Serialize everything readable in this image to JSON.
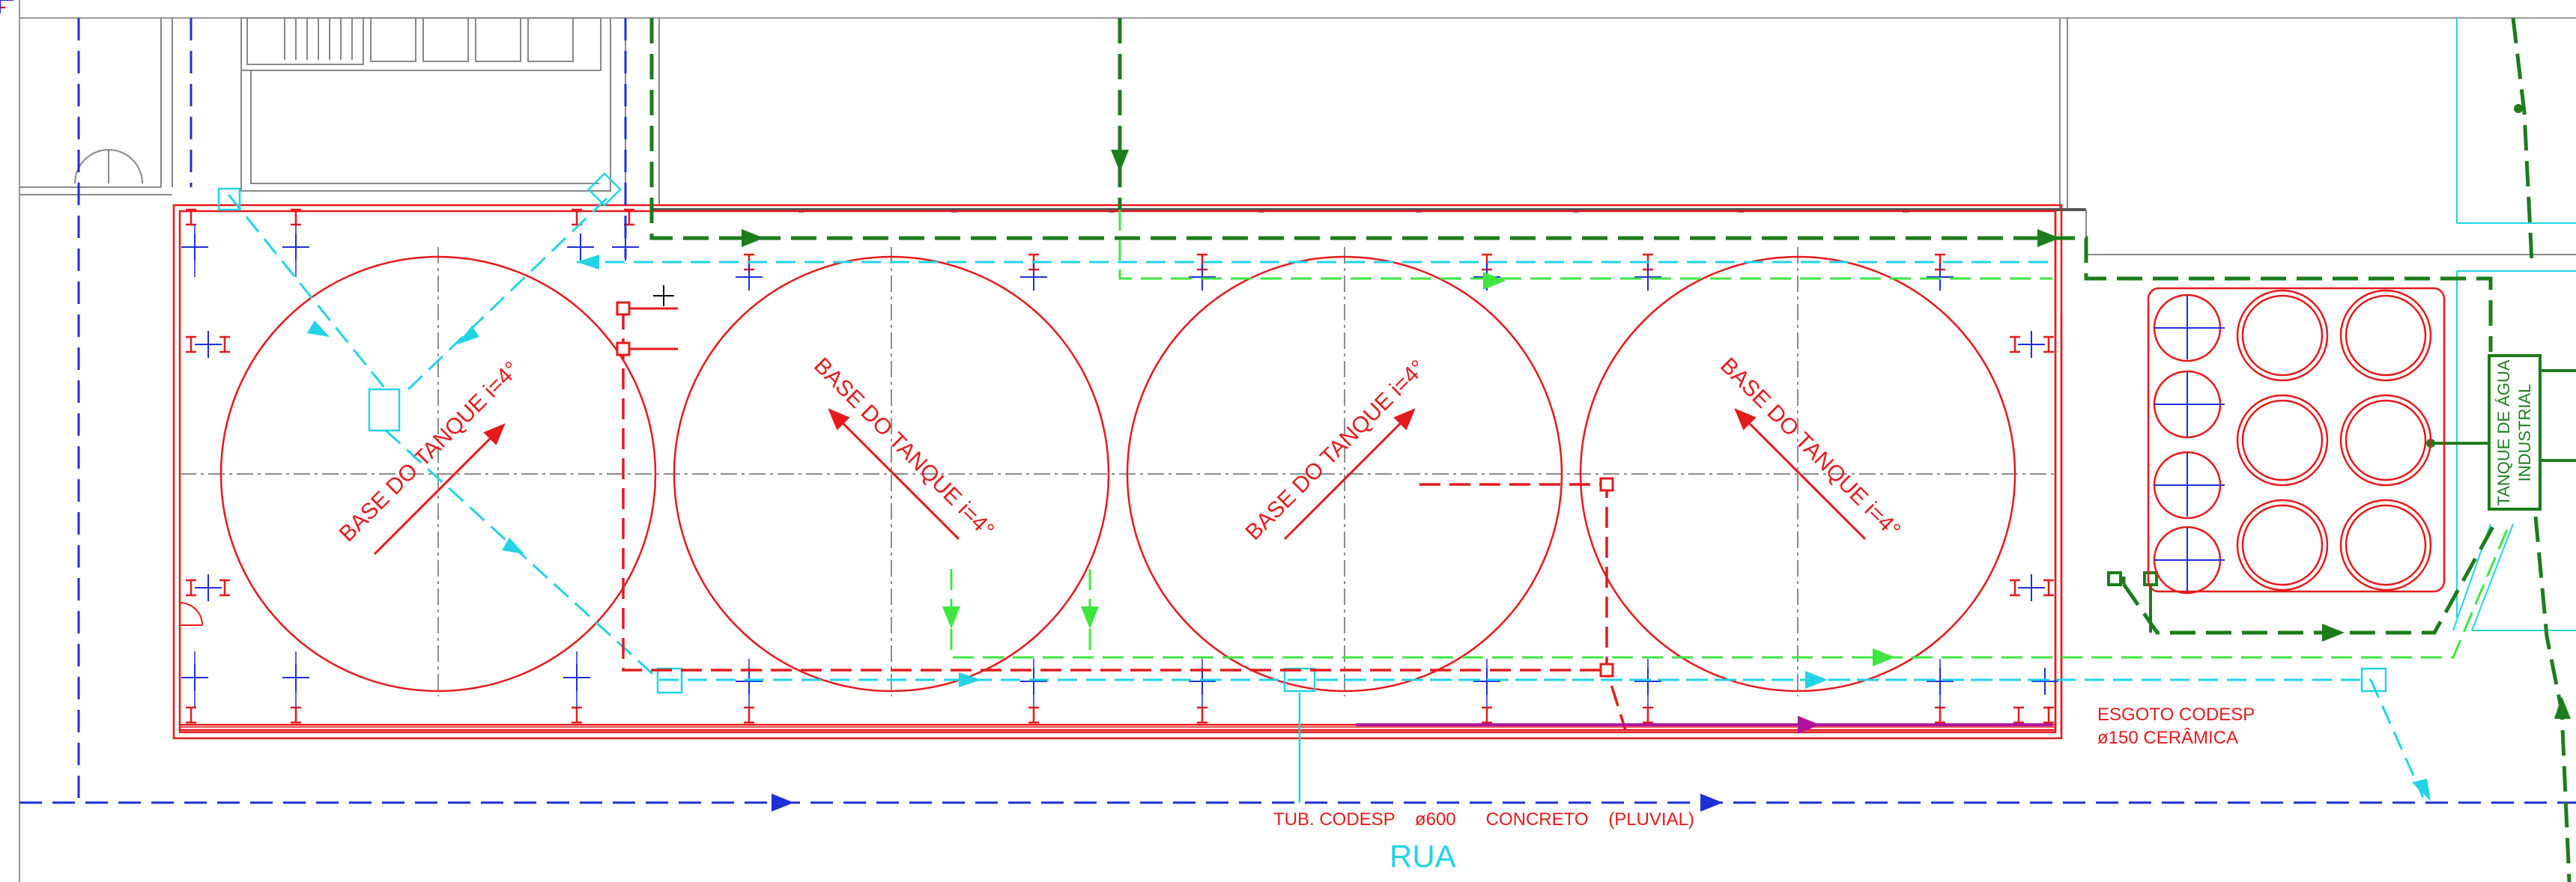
{
  "labels": {
    "tank1": "BASE DO TANQUE i=4°",
    "tank2": "BASE DO TANQUE i=4°",
    "tank3": "BASE DO TANQUE i=4°",
    "tank4": "BASE DO TANQUE i=4°",
    "industrial_tank_line1": "TANQUE DE ÁGUA",
    "industrial_tank_line2": "INDUSTRIAL",
    "sewer_line1": "ESGOTO CODESP",
    "sewer_line2": "ø150 CERÂMICA",
    "storm_pipe": "TUB. CODESP    ø600      CONCRETO    (PLUVIAL)",
    "street": "RUA"
  },
  "colors": {
    "red": "#e41a1c",
    "cyan": "#22d3e6",
    "blue": "#1f2fd6",
    "dark_green": "#1b7d1b",
    "light_green": "#3ee63e",
    "magenta": "#b0149e",
    "gray": "#7a7a7a",
    "outline": "#888888"
  }
}
